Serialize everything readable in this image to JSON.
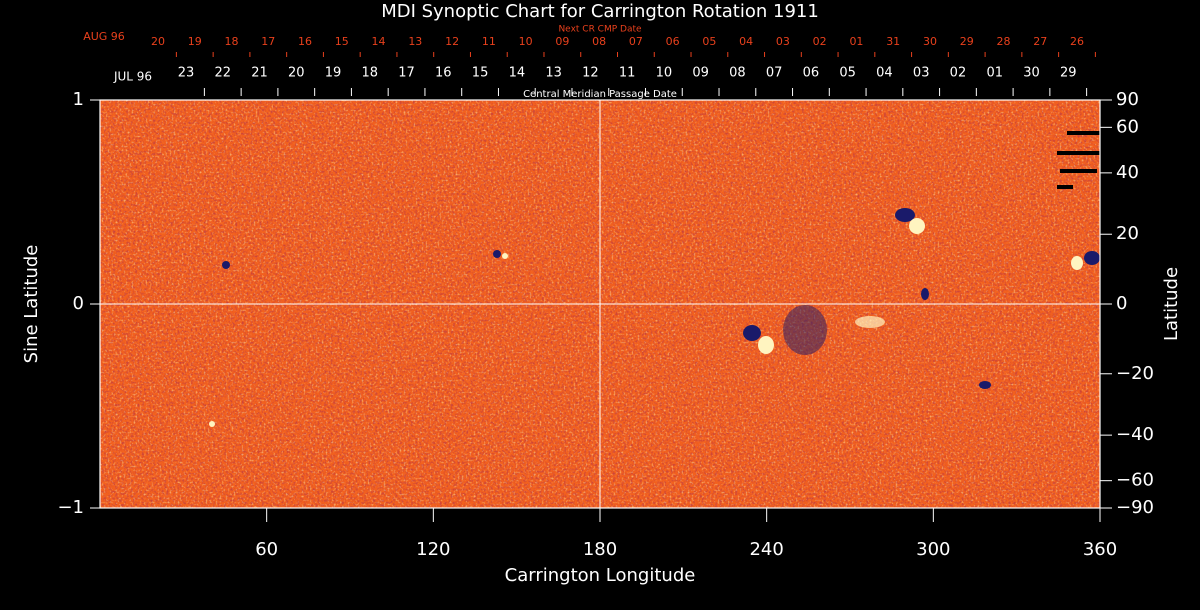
{
  "chart_data": {
    "type": "synoptic-map",
    "title": "MDI Synoptic Chart for Carrington Rotation 1911",
    "xlabel": "Carrington Longitude",
    "ylabel": "Sine Latitude",
    "y2label": "Latitude",
    "xlim": [
      0,
      360
    ],
    "xticks": [
      60,
      120,
      180,
      240,
      300,
      360
    ],
    "ylim": [
      -1,
      1
    ],
    "yticks": [
      {
        "value": -1,
        "label": "−1"
      },
      0,
      1
    ],
    "y2lim": [
      -90,
      90
    ],
    "y2scale": "sine",
    "y2ticks": [
      90,
      60,
      40,
      20,
      0,
      {
        "value": -20,
        "label": "−20"
      },
      {
        "value": -40,
        "label": "−40"
      },
      {
        "value": -60,
        "label": "−60"
      },
      {
        "value": -90,
        "label": "−90"
      }
    ],
    "xlines": [
      180
    ],
    "ylines": [
      0
    ],
    "top_axis": {
      "label": "Next CR CMP Date",
      "start_label": "AUG 96",
      "color": "#e8401c",
      "dates": [
        "20",
        "19",
        "18",
        "17",
        "16",
        "15",
        "14",
        "13",
        "12",
        "11",
        "10",
        "09",
        "08",
        "07",
        "06",
        "05",
        "04",
        "03",
        "02",
        "01",
        "31",
        "30",
        "29",
        "28",
        "27",
        "26"
      ]
    },
    "cmp_axis": {
      "label": "Central Meridian Passage Date",
      "start_label": "JUL 96",
      "color": "#ffffff",
      "dates": [
        "23",
        "22",
        "21",
        "20",
        "19",
        "18",
        "17",
        "16",
        "15",
        "14",
        "13",
        "12",
        "11",
        "10",
        "09",
        "08",
        "07",
        "06",
        "05",
        "04",
        "03",
        "02",
        "01",
        "30",
        "29"
      ]
    }
  }
}
